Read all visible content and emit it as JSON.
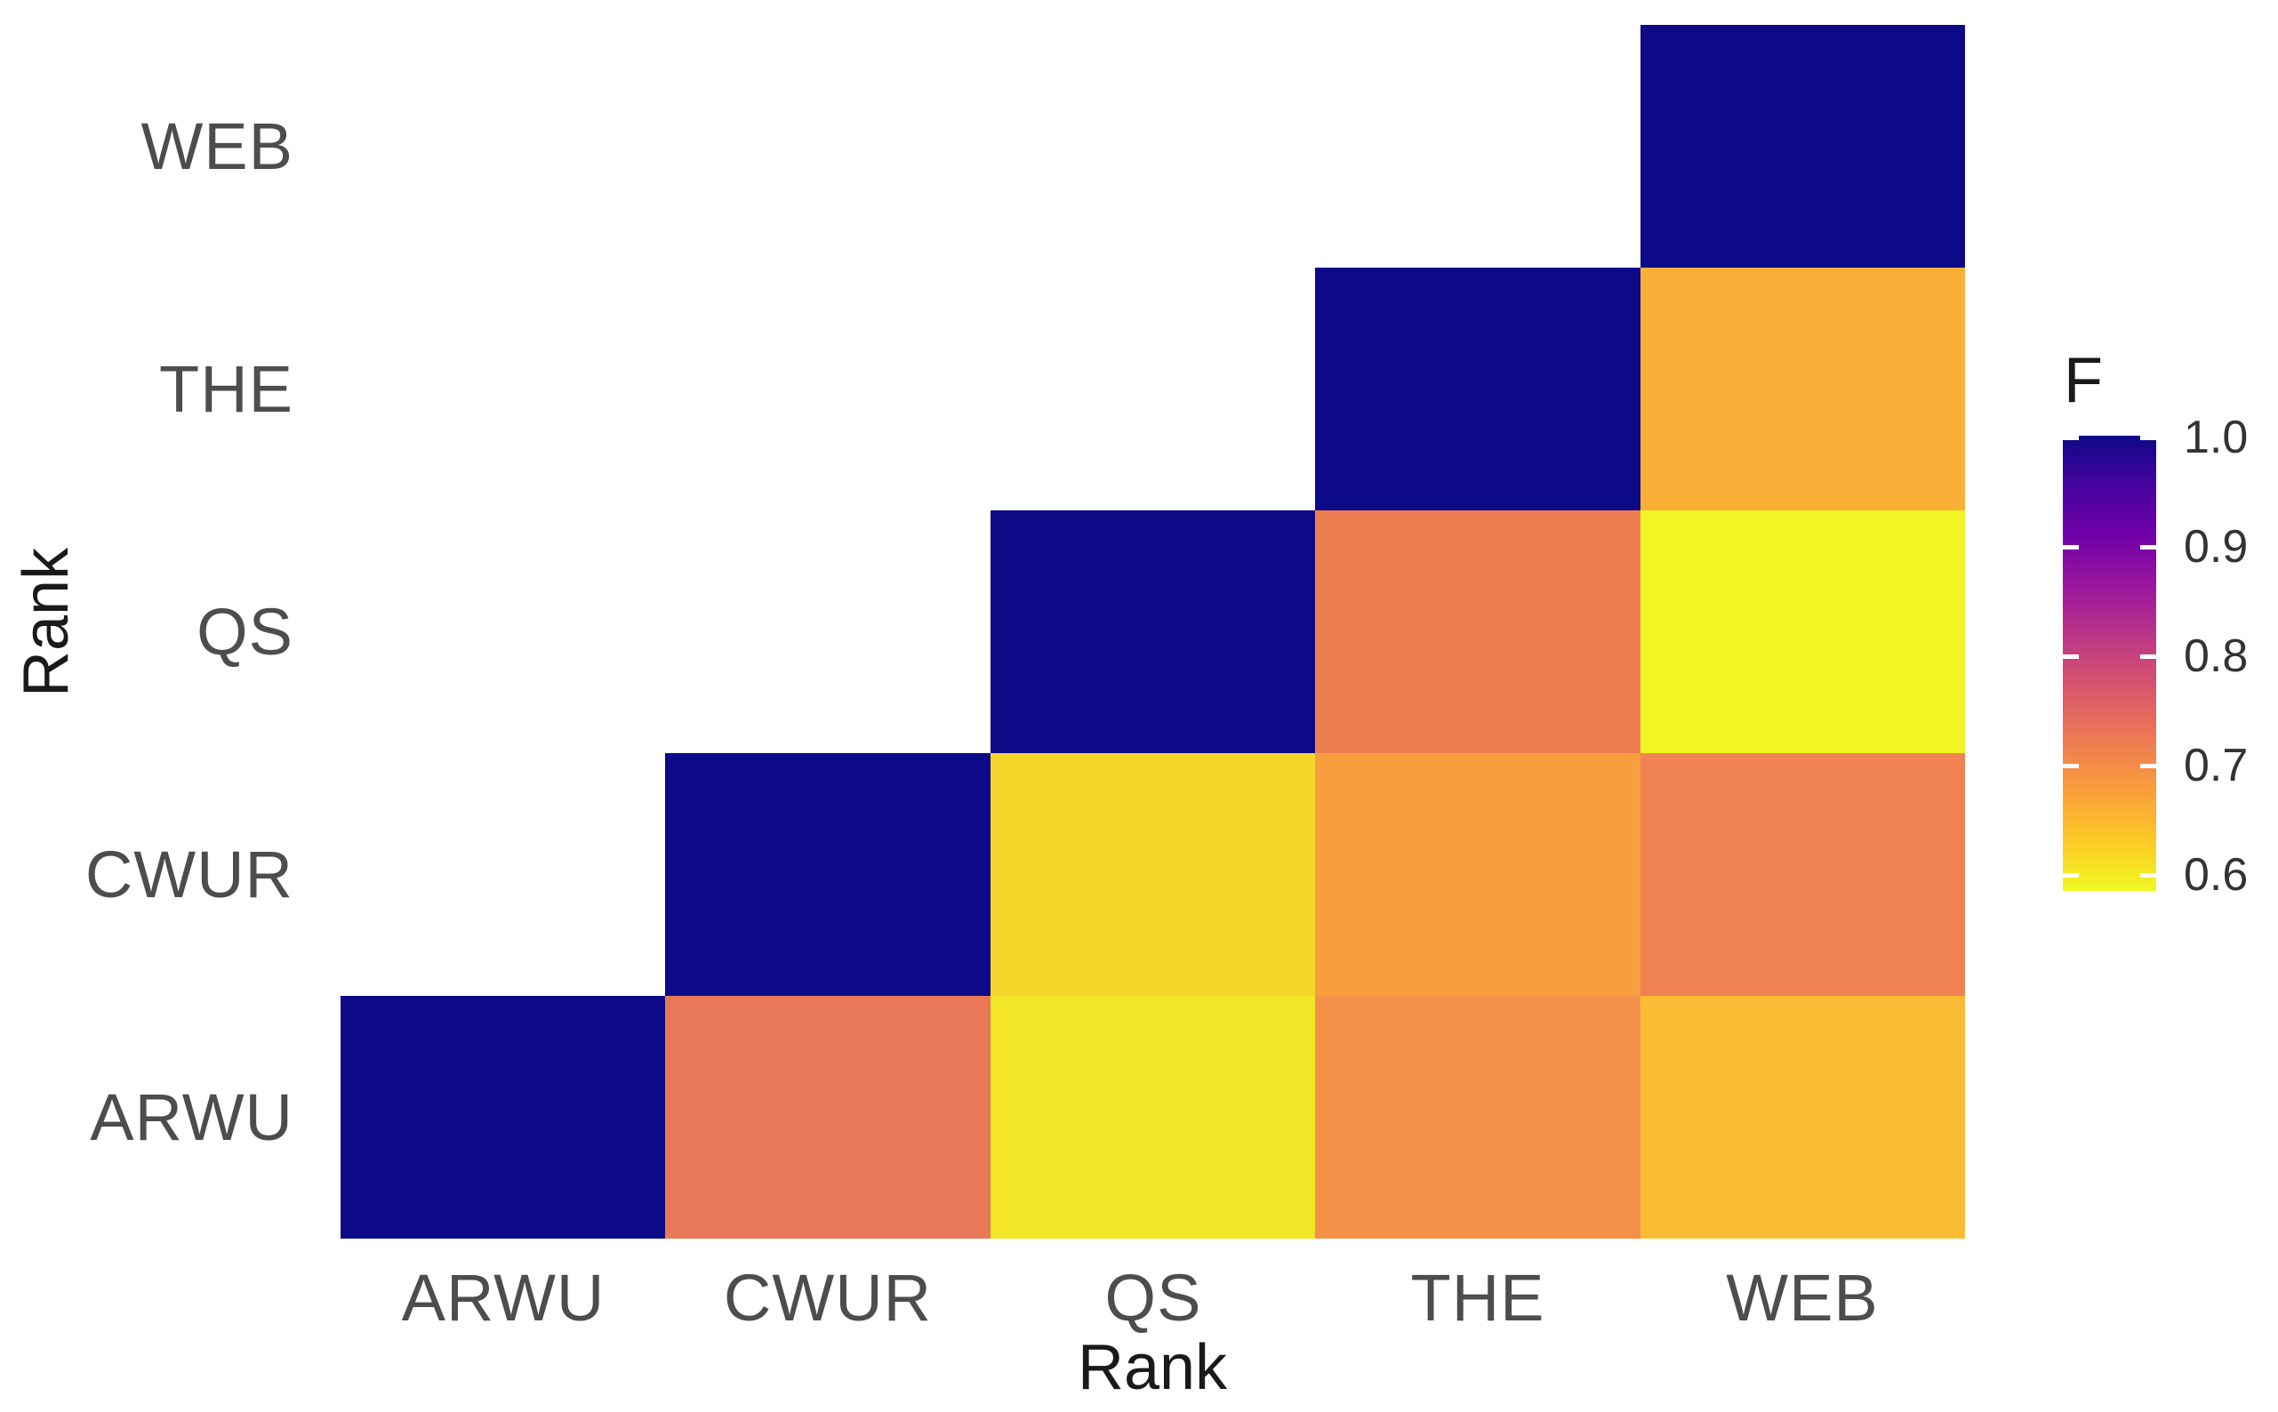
{
  "chart_data": {
    "type": "heatmap",
    "title": "",
    "xlabel": "Rank",
    "ylabel": "Rank",
    "x_categories": [
      "ARWU",
      "CWUR",
      "QS",
      "THE",
      "WEB"
    ],
    "y_categories": [
      "ARWU",
      "CWUR",
      "QS",
      "THE",
      "WEB"
    ],
    "shape": "upper-triangle staircase (cell drawn only when x index >= y index; y runs bottom-to-top)",
    "grid": false,
    "legend": {
      "title": "F",
      "position": "right",
      "tick_labels": [
        "1.0",
        "0.9",
        "0.8",
        "0.7",
        "0.6"
      ],
      "colormap": "plasma reversed (1.0 = dark navy, low = yellow)",
      "range_top": 1.0,
      "range_bottom": 0.59
    },
    "cells": [
      {
        "x": "ARWU",
        "y": "ARWU",
        "value": 1.0,
        "color": "#0d0a88"
      },
      {
        "x": "CWUR",
        "y": "ARWU",
        "value": 0.73,
        "color": "#e87857"
      },
      {
        "x": "QS",
        "y": "ARWU",
        "value": 0.6,
        "color": "#f2e626"
      },
      {
        "x": "THE",
        "y": "ARWU",
        "value": 0.69,
        "color": "#f29147"
      },
      {
        "x": "WEB",
        "y": "ARWU",
        "value": 0.65,
        "color": "#fbbc35"
      },
      {
        "x": "CWUR",
        "y": "CWUR",
        "value": 1.0,
        "color": "#0d0a88"
      },
      {
        "x": "QS",
        "y": "CWUR",
        "value": 0.62,
        "color": "#f5d62b"
      },
      {
        "x": "THE",
        "y": "CWUR",
        "value": 0.68,
        "color": "#f99e3f"
      },
      {
        "x": "WEB",
        "y": "CWUR",
        "value": 0.71,
        "color": "#f08253"
      },
      {
        "x": "QS",
        "y": "QS",
        "value": 1.0,
        "color": "#0d0a88"
      },
      {
        "x": "THE",
        "y": "QS",
        "value": 0.72,
        "color": "#ee7e52"
      },
      {
        "x": "WEB",
        "y": "QS",
        "value": 0.59,
        "color": "#f1f523"
      },
      {
        "x": "THE",
        "y": "THE",
        "value": 1.0,
        "color": "#0d0a88"
      },
      {
        "x": "WEB",
        "y": "THE",
        "value": 0.66,
        "color": "#fbaf38"
      },
      {
        "x": "WEB",
        "y": "WEB",
        "value": 1.0,
        "color": "#0d0a88"
      }
    ],
    "colorbar_gradient_top_to_bottom": [
      "#0d0887",
      "#46039f",
      "#7201a8",
      "#9c179e",
      "#bd3786",
      "#d8576b",
      "#ed7953",
      "#fa9e3b",
      "#fdc926",
      "#f0f921"
    ]
  },
  "style": {
    "background": "#ffffff",
    "tick_label_color": "#4d4d4d",
    "axis_title_color": "#1a1a1a",
    "legend_label_color": "#333333"
  }
}
